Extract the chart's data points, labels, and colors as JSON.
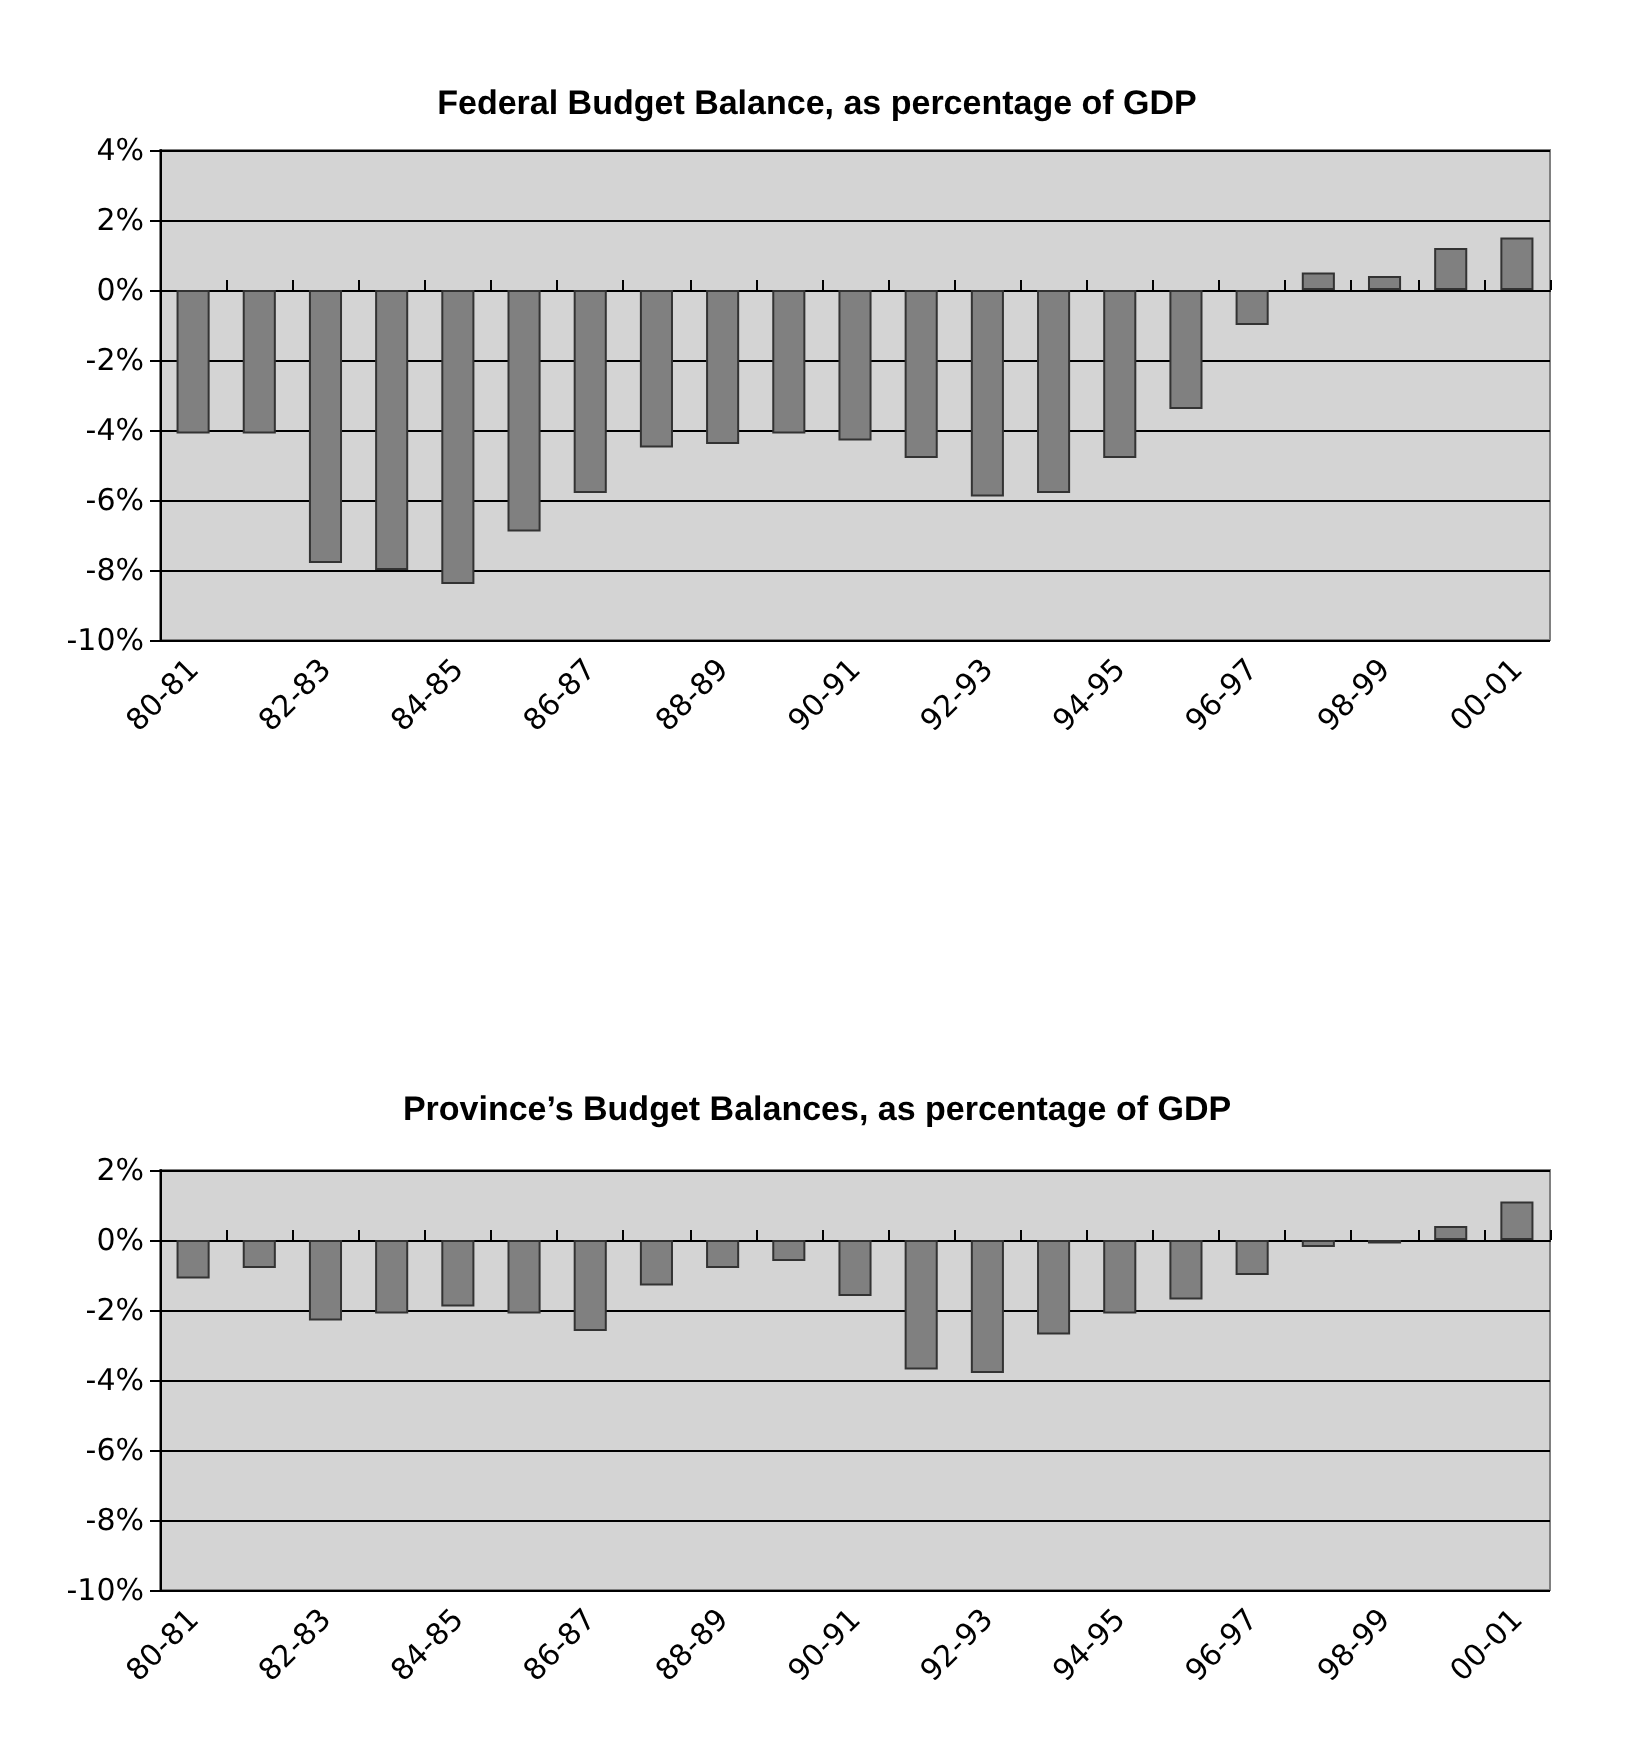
{
  "chart_data": [
    {
      "type": "bar",
      "title": "Federal Budget Balance, as percentage of GDP",
      "categories": [
        "80-81",
        null,
        "82-83",
        null,
        "84-85",
        null,
        "86-87",
        null,
        "88-89",
        null,
        "90-91",
        null,
        "92-93",
        null,
        "94-95",
        null,
        "96-97",
        null,
        "98-99",
        null,
        "00-01"
      ],
      "values": [
        -4.1,
        -4.1,
        -7.8,
        -8.0,
        -8.4,
        -6.9,
        -5.8,
        -4.5,
        -4.4,
        -4.1,
        -4.3,
        -4.8,
        -5.9,
        -5.8,
        -4.8,
        -3.4,
        -1.0,
        0.5,
        0.4,
        1.2,
        1.5
      ],
      "color": "#808080",
      "ylim": [
        -10,
        4
      ],
      "yticks": [
        {
          "value": -10,
          "label": "-10%"
        },
        {
          "value": -8,
          "label": "-8%"
        },
        {
          "value": -6,
          "label": "-6%"
        },
        {
          "value": -4,
          "label": "-4%"
        },
        {
          "value": -2,
          "label": "-2%"
        },
        {
          "value": 0,
          "label": "0%"
        },
        {
          "value": 2,
          "label": "2%"
        },
        {
          "value": 4,
          "label": "4%"
        }
      ],
      "grid": "y"
    },
    {
      "type": "bar",
      "title": "Province’s Budget Balances, as percentage of GDP",
      "categories": [
        "80-81",
        null,
        "82-83",
        null,
        "84-85",
        null,
        "86-87",
        null,
        "88-89",
        null,
        "90-91",
        null,
        "92-93",
        null,
        "94-95",
        null,
        "96-97",
        null,
        "98-99",
        null,
        "00-01"
      ],
      "values": [
        -1.1,
        -0.8,
        -2.3,
        -2.1,
        -1.9,
        -2.1,
        -2.6,
        -1.3,
        -0.8,
        -0.6,
        -1.6,
        -3.7,
        -3.8,
        -2.7,
        -2.1,
        -1.7,
        -1.0,
        -0.2,
        -0.1,
        0.4,
        1.1
      ],
      "color": "#808080",
      "ylim": [
        -10,
        2
      ],
      "yticks": [
        {
          "value": -10,
          "label": "-10%"
        },
        {
          "value": -8,
          "label": "-8%"
        },
        {
          "value": -6,
          "label": "-6%"
        },
        {
          "value": -4,
          "label": "-4%"
        },
        {
          "value": -2,
          "label": "-2%"
        },
        {
          "value": 0,
          "label": "0%"
        },
        {
          "value": 2,
          "label": "2%"
        }
      ],
      "grid": "y"
    }
  ]
}
